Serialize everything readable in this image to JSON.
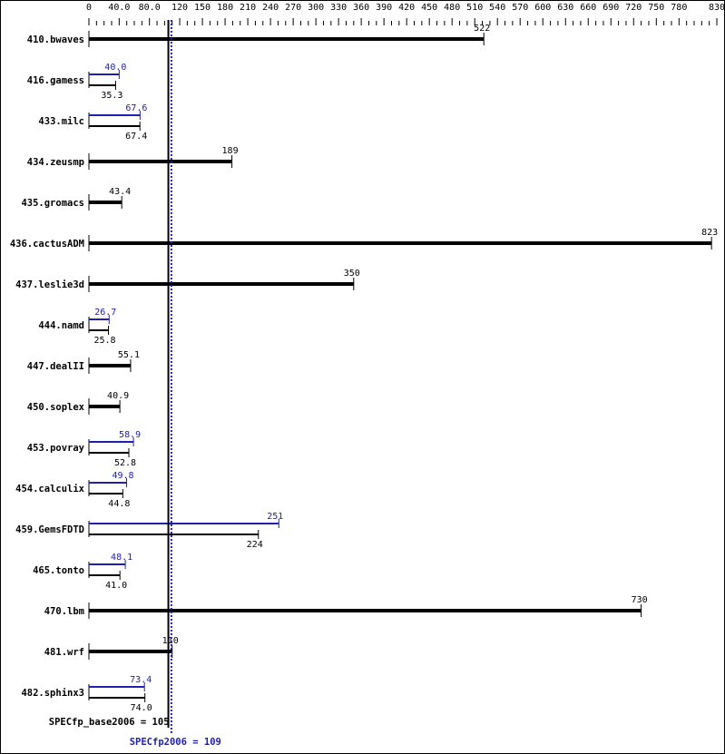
{
  "chart_data": {
    "type": "bar",
    "orientation": "horizontal",
    "xlim": [
      0,
      830
    ],
    "x_tick_labels": [
      "0",
      "40.0",
      "80.0",
      "120",
      "150",
      "180",
      "210",
      "240",
      "270",
      "300",
      "330",
      "360",
      "390",
      "420",
      "450",
      "480",
      "510",
      "540",
      "570",
      "600",
      "630",
      "660",
      "690",
      "720",
      "750",
      "780",
      "830"
    ],
    "categories": [
      "410.bwaves",
      "416.gamess",
      "433.milc",
      "434.zeusmp",
      "435.gromacs",
      "436.cactusADM",
      "437.leslie3d",
      "444.namd",
      "447.dealII",
      "450.soplex",
      "453.povray",
      "454.calculix",
      "459.GemsFDTD",
      "465.tonto",
      "470.lbm",
      "481.wrf",
      "482.sphinx3"
    ],
    "series": [
      {
        "name": "SPECfp_base2006",
        "color": "#000000",
        "values": [
          522,
          35.3,
          67.4,
          189,
          43.4,
          823,
          350,
          25.8,
          55.1,
          40.9,
          52.8,
          44.8,
          224,
          41.0,
          730,
          110,
          74.0
        ]
      },
      {
        "name": "SPECfp2006",
        "color": "#2020b0",
        "values": [
          null,
          40.0,
          67.6,
          null,
          null,
          null,
          null,
          26.7,
          null,
          null,
          58.9,
          49.8,
          251,
          48.1,
          null,
          null,
          73.4
        ]
      }
    ],
    "value_labels_base": [
      "522",
      "35.3",
      "67.4",
      "189",
      "43.4",
      "823",
      "350",
      "25.8",
      "55.1",
      "40.9",
      "52.8",
      "44.8",
      "224",
      "41.0",
      "730",
      "110",
      "74.0"
    ],
    "value_labels_peak": [
      null,
      "40.0",
      "67.6",
      null,
      null,
      null,
      null,
      "26.7",
      null,
      null,
      "58.9",
      "49.8",
      "251",
      "48.1",
      null,
      null,
      "73.4"
    ],
    "reference_lines": [
      {
        "label": "SPECfp_base2006 = 105",
        "value": 105,
        "color": "#000000",
        "style": "solid"
      },
      {
        "label": "SPECfp2006 = 109",
        "value": 109,
        "color": "#2020b0",
        "style": "dotted"
      }
    ],
    "grid": false
  }
}
